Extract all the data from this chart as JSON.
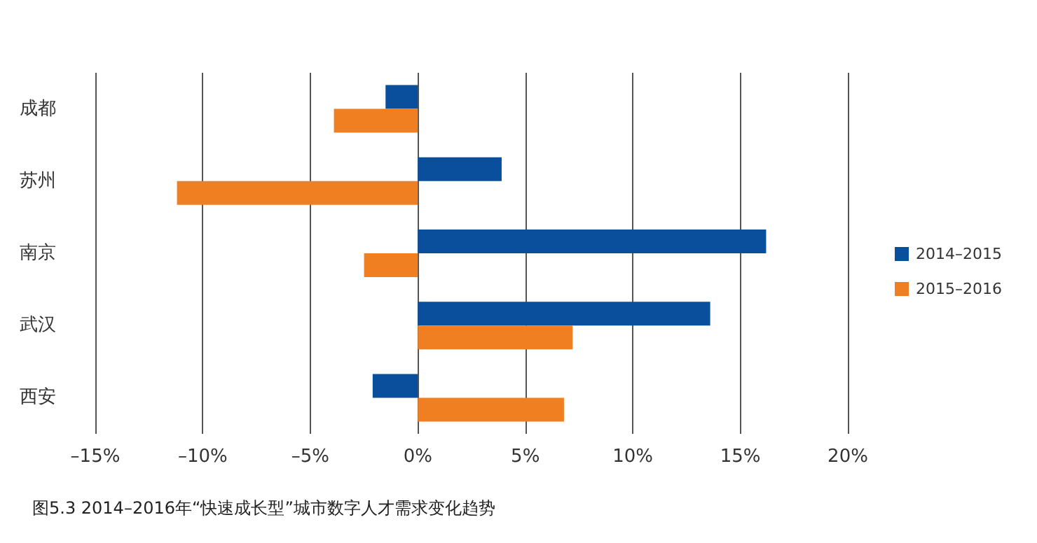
{
  "chart_data": {
    "type": "bar",
    "orientation": "horizontal",
    "title": "图5.3 2014–2016年“快速成长型”城市数字人才需求变化趋势",
    "categories": [
      "成都",
      "苏州",
      "南京",
      "武汉",
      "西安"
    ],
    "series": [
      {
        "name": "2014–2015",
        "color": "#0a4f9c",
        "values": [
          -1.5,
          3.9,
          16.2,
          13.6,
          -2.1
        ]
      },
      {
        "name": "2015–2016",
        "color": "#f07f22",
        "values": [
          -3.9,
          -11.2,
          -2.5,
          7.2,
          6.8
        ]
      }
    ],
    "xlim": [
      -15,
      20
    ],
    "xticks": [
      {
        "value": -15,
        "label": "–15%"
      },
      {
        "value": -10,
        "label": "–10%"
      },
      {
        "value": -5,
        "label": "–5%"
      },
      {
        "value": 0,
        "label": "0%"
      },
      {
        "value": 5,
        "label": "5%"
      },
      {
        "value": 10,
        "label": "10%"
      },
      {
        "value": 15,
        "label": "15%"
      },
      {
        "value": 20,
        "label": "20%"
      }
    ],
    "grid": "x",
    "legend": "right"
  }
}
